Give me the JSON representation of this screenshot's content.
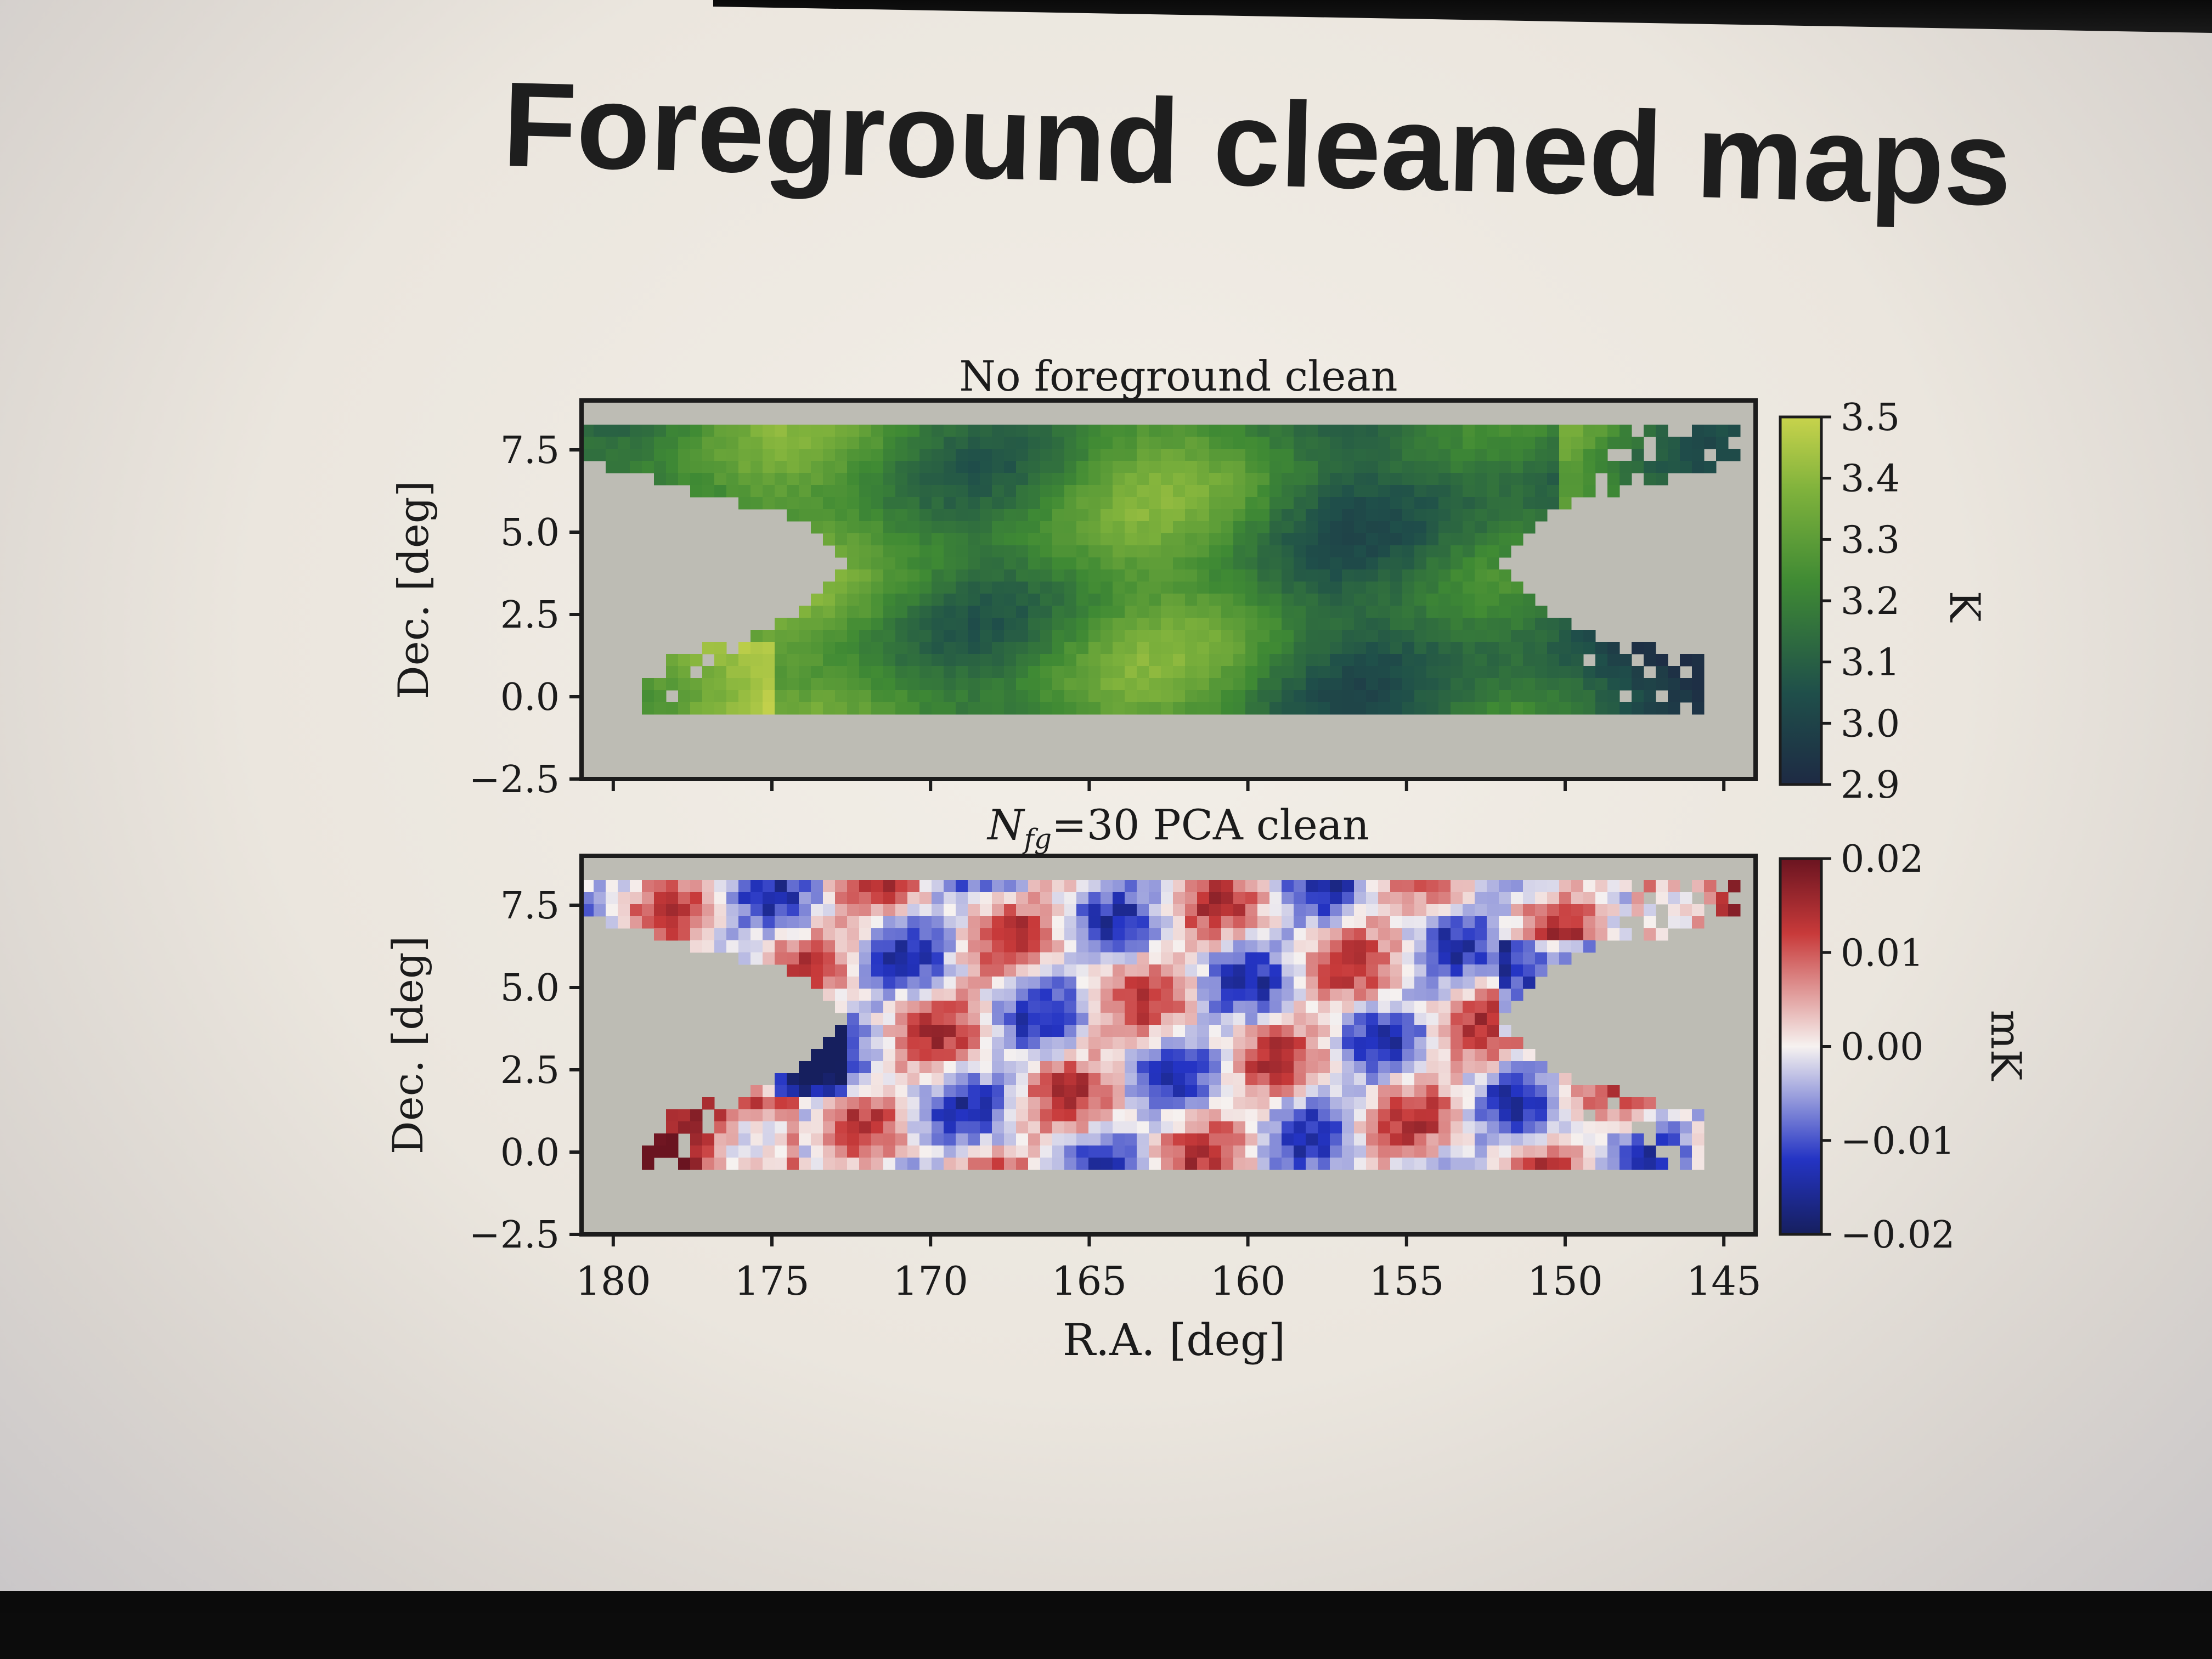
{
  "slide": {
    "title": "Foreground cleaned maps"
  },
  "chart_data": [
    {
      "type": "heatmap",
      "title": "No foreground clean",
      "xlabel": "",
      "ylabel": "Dec. [deg]",
      "xlim": [
        181,
        144
      ],
      "ylim": [
        -2.5,
        9.0
      ],
      "yticks": [
        "7.5",
        "5.0",
        "2.5",
        "0.0",
        "−2.5"
      ],
      "ytick_values": [
        7.5,
        5.0,
        2.5,
        0.0,
        -2.5
      ],
      "colorbar": {
        "label": "K",
        "ticks": [
          "3.5",
          "3.4",
          "3.3",
          "3.2",
          "3.1",
          "3.0",
          "2.9"
        ],
        "tick_values": [
          3.5,
          3.4,
          3.3,
          3.2,
          3.1,
          3.0,
          2.9
        ],
        "range": [
          2.9,
          3.5
        ],
        "colormap": "viridis-green"
      },
      "colors": {
        "low": "#1e2a44",
        "mid": "#3f8a34",
        "high": "#c8d34c",
        "mask": "#bdbcb4"
      }
    },
    {
      "type": "heatmap",
      "title_prefix": "N",
      "title_sub": "fg",
      "title_rest": "=30 PCA clean",
      "xlabel": "R.A. [deg]",
      "ylabel": "Dec. [deg]",
      "xlim": [
        181,
        144
      ],
      "ylim": [
        -2.5,
        9.0
      ],
      "xticks": [
        "180",
        "175",
        "170",
        "165",
        "160",
        "155",
        "150",
        "145"
      ],
      "xtick_values": [
        180,
        175,
        170,
        165,
        160,
        155,
        150,
        145
      ],
      "yticks": [
        "7.5",
        "5.0",
        "2.5",
        "0.0",
        "−2.5"
      ],
      "ytick_values": [
        7.5,
        5.0,
        2.5,
        0.0,
        -2.5
      ],
      "colorbar": {
        "label": "mK",
        "ticks": [
          "0.02",
          "0.01",
          "0.00",
          "−0.01",
          "−0.02"
        ],
        "tick_values": [
          0.02,
          0.01,
          0.0,
          -0.01,
          -0.02
        ],
        "range": [
          -0.02,
          0.02
        ],
        "colormap": "seismic"
      },
      "colors": {
        "low": "#1f2a8a",
        "mid": "#f6f2f0",
        "high": "#7a1620",
        "mask": "#bdbcb4"
      }
    }
  ]
}
